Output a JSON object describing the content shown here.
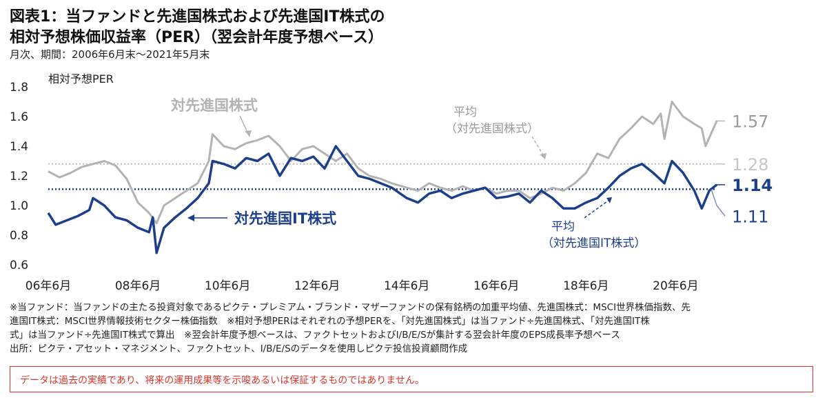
{
  "header": {
    "title_line1": "図表1：当ファンドと先進国株式および先進国IT株式の",
    "title_line2": "相対予想株価収益率（PER）（翌会計年度予想ベース）",
    "subtitle": "月次、期間：2006年6月末～2021年5月末"
  },
  "chart_data": {
    "type": "line",
    "ylabel": "相対予想PER",
    "ylim": [
      0.6,
      1.8
    ],
    "yticks": [
      "0.6",
      "0.8",
      "1.0",
      "1.2",
      "1.4",
      "1.6",
      "1.8"
    ],
    "xrange": [
      "2006-06",
      "2021-05"
    ],
    "xticks": [
      {
        "label": "06年6月",
        "date": "2006-06"
      },
      {
        "label": "08年6月",
        "date": "2008-06"
      },
      {
        "label": "10年6月",
        "date": "2010-06"
      },
      {
        "label": "12年6月",
        "date": "2012-06"
      },
      {
        "label": "14年6月",
        "date": "2014-06"
      },
      {
        "label": "16年6月",
        "date": "2016-06"
      },
      {
        "label": "18年6月",
        "date": "2018-06"
      },
      {
        "label": "20年6月",
        "date": "2020-06"
      }
    ],
    "grid": false,
    "series": [
      {
        "name": "対先進国株式",
        "color": "#b3b3b3",
        "points": [
          [
            "2006-06",
            1.23
          ],
          [
            "2006-09",
            1.19
          ],
          [
            "2006-12",
            1.22
          ],
          [
            "2007-03",
            1.26
          ],
          [
            "2007-06",
            1.28
          ],
          [
            "2007-09",
            1.3
          ],
          [
            "2007-12",
            1.27
          ],
          [
            "2008-03",
            1.18
          ],
          [
            "2008-06",
            1.02
          ],
          [
            "2008-09",
            0.95
          ],
          [
            "2008-11",
            0.88
          ],
          [
            "2009-01",
            1.0
          ],
          [
            "2009-04",
            1.05
          ],
          [
            "2009-07",
            1.1
          ],
          [
            "2009-10",
            1.15
          ],
          [
            "2010-01",
            1.3
          ],
          [
            "2010-02",
            1.48
          ],
          [
            "2010-05",
            1.4
          ],
          [
            "2010-08",
            1.38
          ],
          [
            "2010-11",
            1.42
          ],
          [
            "2011-02",
            1.44
          ],
          [
            "2011-05",
            1.47
          ],
          [
            "2011-08",
            1.4
          ],
          [
            "2011-11",
            1.3
          ],
          [
            "2012-02",
            1.38
          ],
          [
            "2012-05",
            1.4
          ],
          [
            "2012-08",
            1.35
          ],
          [
            "2012-11",
            1.3
          ],
          [
            "2013-02",
            1.35
          ],
          [
            "2013-05",
            1.25
          ],
          [
            "2013-08",
            1.2
          ],
          [
            "2013-11",
            1.18
          ],
          [
            "2014-02",
            1.15
          ],
          [
            "2014-06",
            1.12
          ],
          [
            "2014-09",
            1.1
          ],
          [
            "2014-12",
            1.15
          ],
          [
            "2015-03",
            1.12
          ],
          [
            "2015-06",
            1.1
          ],
          [
            "2015-09",
            1.13
          ],
          [
            "2015-12",
            1.1
          ],
          [
            "2016-03",
            1.12
          ],
          [
            "2016-06",
            1.08
          ],
          [
            "2016-09",
            1.1
          ],
          [
            "2016-12",
            1.1
          ],
          [
            "2017-03",
            1.05
          ],
          [
            "2017-06",
            1.08
          ],
          [
            "2017-09",
            1.12
          ],
          [
            "2017-12",
            1.1
          ],
          [
            "2018-03",
            1.15
          ],
          [
            "2018-06",
            1.22
          ],
          [
            "2018-09",
            1.35
          ],
          [
            "2018-12",
            1.32
          ],
          [
            "2019-03",
            1.45
          ],
          [
            "2019-06",
            1.52
          ],
          [
            "2019-09",
            1.6
          ],
          [
            "2019-12",
            1.55
          ],
          [
            "2020-02",
            1.62
          ],
          [
            "2020-03",
            1.45
          ],
          [
            "2020-05",
            1.7
          ],
          [
            "2020-08",
            1.6
          ],
          [
            "2020-11",
            1.55
          ],
          [
            "2021-01",
            1.52
          ],
          [
            "2021-02",
            1.4
          ],
          [
            "2021-05",
            1.57
          ]
        ]
      },
      {
        "name": "対先進国IT株式",
        "color": "#1c3f8c",
        "points": [
          [
            "2006-06",
            0.95
          ],
          [
            "2006-08",
            0.87
          ],
          [
            "2006-11",
            0.9
          ],
          [
            "2007-02",
            0.93
          ],
          [
            "2007-05",
            0.97
          ],
          [
            "2007-06",
            1.05
          ],
          [
            "2007-09",
            1.0
          ],
          [
            "2007-12",
            0.92
          ],
          [
            "2008-03",
            0.9
          ],
          [
            "2008-06",
            0.85
          ],
          [
            "2008-09",
            0.82
          ],
          [
            "2008-10",
            0.92
          ],
          [
            "2008-11",
            0.68
          ],
          [
            "2009-01",
            0.85
          ],
          [
            "2009-04",
            0.92
          ],
          [
            "2009-07",
            0.98
          ],
          [
            "2009-10",
            1.05
          ],
          [
            "2010-01",
            1.15
          ],
          [
            "2010-02",
            1.3
          ],
          [
            "2010-05",
            1.28
          ],
          [
            "2010-08",
            1.25
          ],
          [
            "2010-11",
            1.32
          ],
          [
            "2011-02",
            1.3
          ],
          [
            "2011-05",
            1.35
          ],
          [
            "2011-08",
            1.2
          ],
          [
            "2011-11",
            1.32
          ],
          [
            "2012-02",
            1.3
          ],
          [
            "2012-05",
            1.33
          ],
          [
            "2012-08",
            1.25
          ],
          [
            "2012-11",
            1.4
          ],
          [
            "2013-02",
            1.3
          ],
          [
            "2013-05",
            1.2
          ],
          [
            "2013-08",
            1.18
          ],
          [
            "2013-11",
            1.15
          ],
          [
            "2014-02",
            1.12
          ],
          [
            "2014-06",
            1.05
          ],
          [
            "2014-09",
            1.02
          ],
          [
            "2014-12",
            1.08
          ],
          [
            "2015-03",
            1.1
          ],
          [
            "2015-06",
            1.05
          ],
          [
            "2015-09",
            1.08
          ],
          [
            "2015-12",
            1.1
          ],
          [
            "2016-03",
            1.12
          ],
          [
            "2016-06",
            1.05
          ],
          [
            "2016-09",
            1.06
          ],
          [
            "2016-12",
            1.08
          ],
          [
            "2017-03",
            1.02
          ],
          [
            "2017-06",
            1.1
          ],
          [
            "2017-09",
            1.05
          ],
          [
            "2017-12",
            0.98
          ],
          [
            "2018-03",
            0.98
          ],
          [
            "2018-06",
            1.02
          ],
          [
            "2018-09",
            1.05
          ],
          [
            "2018-12",
            1.12
          ],
          [
            "2019-03",
            1.2
          ],
          [
            "2019-06",
            1.25
          ],
          [
            "2019-09",
            1.28
          ],
          [
            "2019-12",
            1.22
          ],
          [
            "2020-03",
            1.15
          ],
          [
            "2020-05",
            1.3
          ],
          [
            "2020-08",
            1.22
          ],
          [
            "2020-11",
            1.1
          ],
          [
            "2021-01",
            0.98
          ],
          [
            "2021-03",
            1.1
          ],
          [
            "2021-05",
            1.14
          ]
        ]
      }
    ],
    "averages": [
      {
        "series": "対先進国株式",
        "value": 1.28,
        "label": "1.28",
        "color": "#c6c6c6"
      },
      {
        "series": "対先進国IT株式",
        "value": 1.11,
        "label": "1.11",
        "color": "#1c3f8c"
      }
    ],
    "end_labels": [
      {
        "series": "対先進国株式",
        "value": 1.57,
        "label": "1.57",
        "color": "#9a9a9a"
      },
      {
        "series": "対先進国IT株式",
        "value": 1.14,
        "label": "1.14",
        "color": "#1c3f8c"
      }
    ],
    "annotations": {
      "gray_series_label": "対先進国株式",
      "blue_series_label": "対先進国IT株式",
      "gray_avg_line1": "平均",
      "gray_avg_line2": "（対先進国株式）",
      "blue_avg_line1": "平均",
      "blue_avg_line2": "（対先進国IT株式）"
    }
  },
  "notes": {
    "line1": "※当ファンド：当ファンドの主たる投資対象であるピクテ・プレミアム・ブランド・マザーファンドの保有銘柄の加重平均値、先進国株式：MSCI世界株価指数、先",
    "line2": "進国IT株式：MSCI世界情報技術セクター株価指数　※相対予想PERはそれぞれの予想PERを、「対先進国株式」は当ファンド÷先進国株式、「対先進国IT株",
    "line3": "式」は当ファンド÷先進国IT株式で算出　※翌会計年度予想ベースは、ファクトセットおよびI/B/E/Sが集計する翌会計年度のEPS成長率予想ベース",
    "line4": "出所：ピクテ・アセット・マネジメント、ファクトセット、I/B/E/Sのデータを使用しピクテ投信投資顧問作成"
  },
  "disclaimer": "データは過去の実績であり、将来の運用成果等を示唆あるいは保証するものではありません。"
}
